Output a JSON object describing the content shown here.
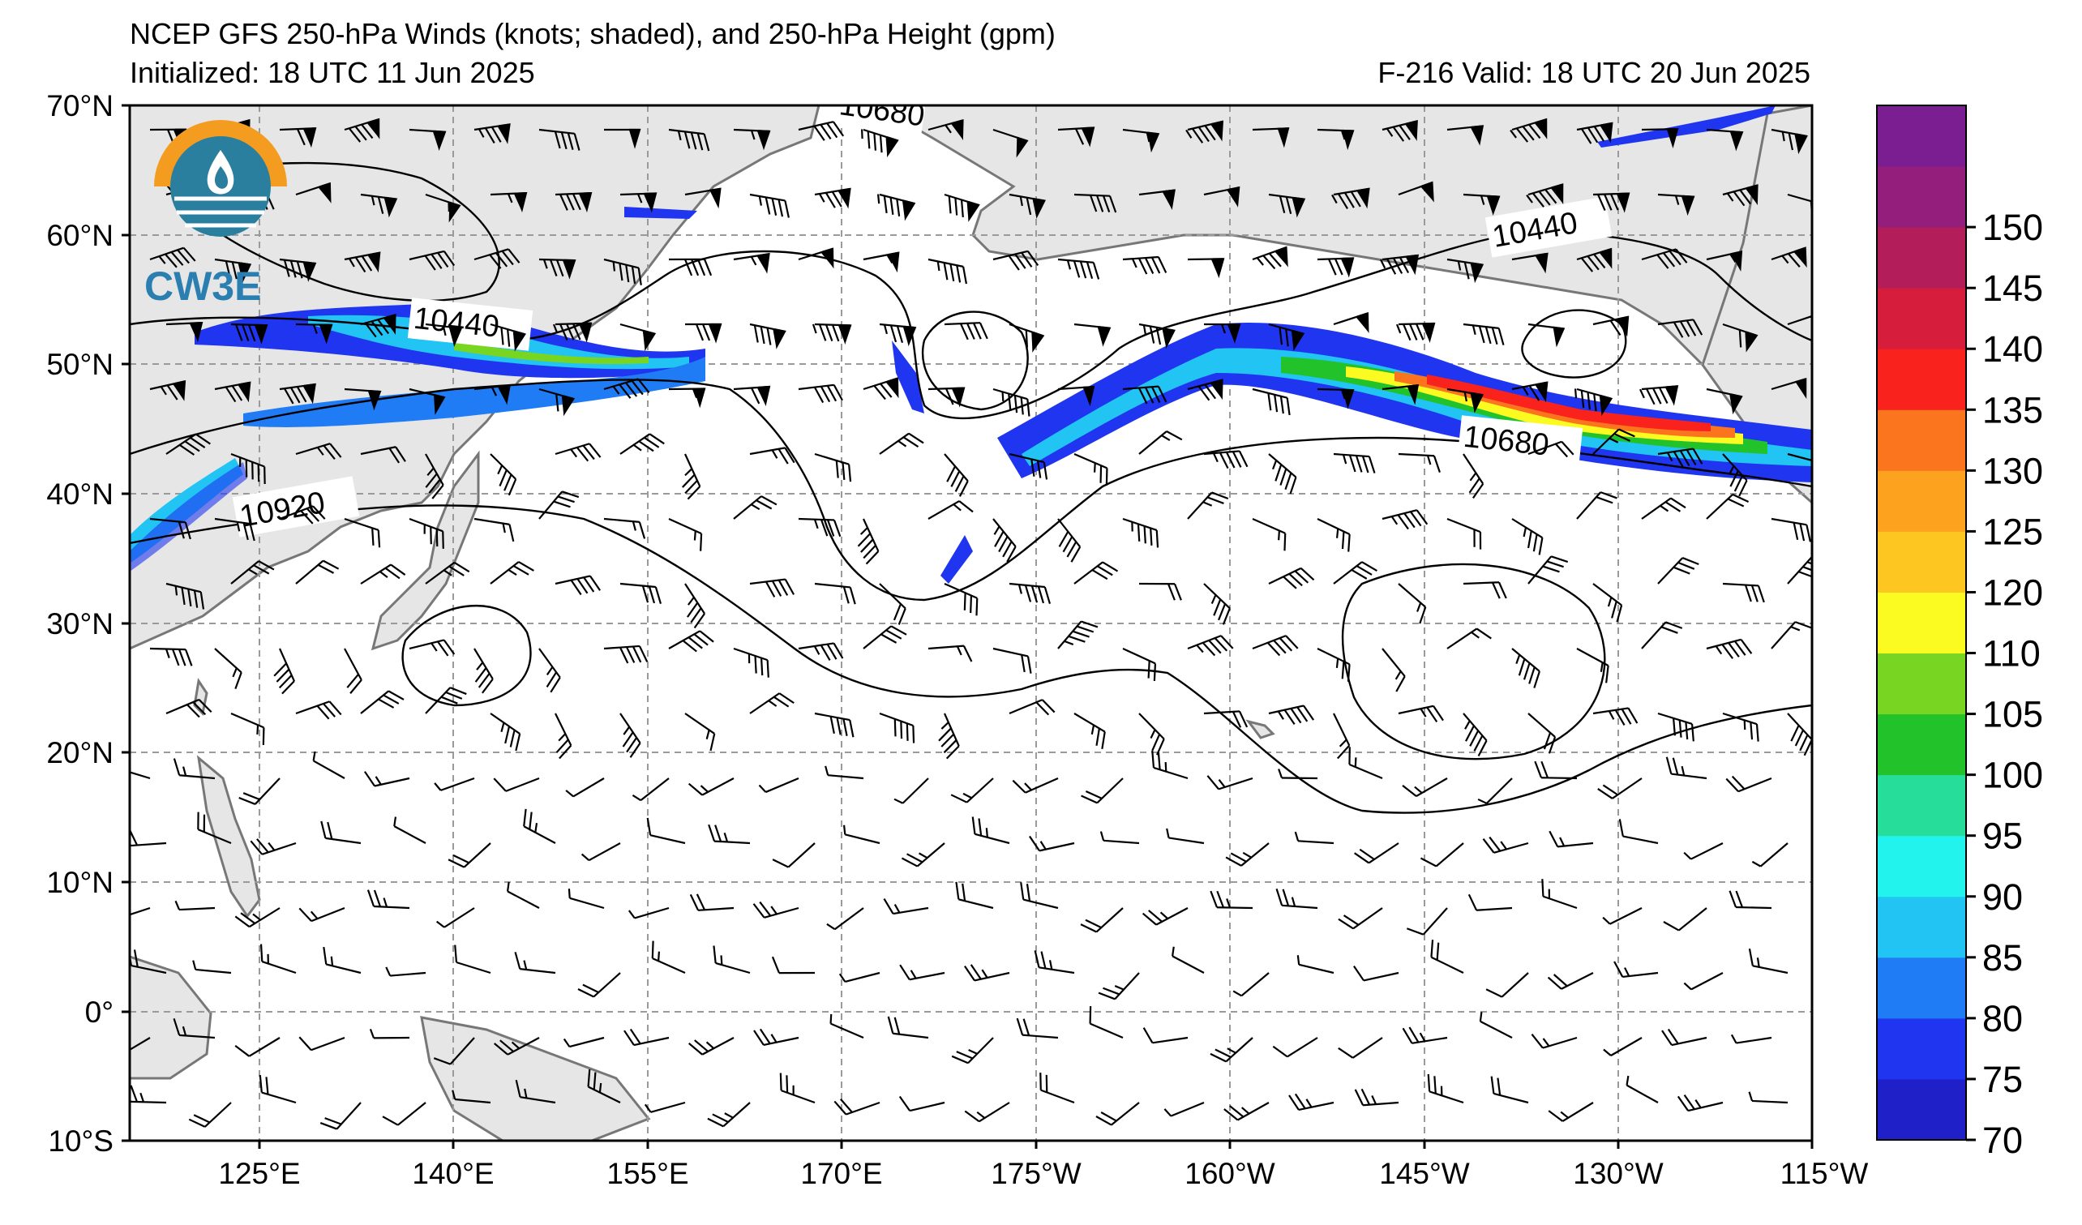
{
  "title": {
    "line1": "NCEP GFS 250-hPa Winds (knots; shaded), and 250-hPa Height (gpm)",
    "line2": "Initialized: 18 UTC 11 Jun 2025",
    "valid": "F-216  Valid: 18 UTC 20 Jun 2025"
  },
  "logo": {
    "text": "CW3E",
    "colors": {
      "ring": "#f39c1f",
      "sea": "#2a7f9e"
    }
  },
  "map": {
    "lat_labels": [
      "70°N",
      "60°N",
      "50°N",
      "40°N",
      "30°N",
      "20°N",
      "10°N",
      "0°",
      "10°S"
    ],
    "lon_labels": [
      "125°E",
      "140°E",
      "155°E",
      "170°E",
      "175°W",
      "160°W",
      "145°W",
      "130°W",
      "115°W"
    ],
    "extent": {
      "lon_min": 115,
      "lon_max": 245,
      "lat_min": -10,
      "lat_max": 70
    },
    "contour_labels": [
      "10680",
      "10440",
      "10920",
      "10440",
      "10680"
    ],
    "colors": {
      "land": "#e6e6e6",
      "coast": "#777777",
      "grid": "#9a9a9a",
      "contour": "#000000"
    }
  },
  "colorbar": {
    "ticks": [
      "70",
      "75",
      "80",
      "85",
      "90",
      "95",
      "100",
      "105",
      "110",
      "120",
      "125",
      "130",
      "135",
      "140",
      "145",
      "150"
    ],
    "colors": [
      "#1f20c8",
      "#2035f0",
      "#1f7cf5",
      "#22c4f4",
      "#22f3ec",
      "#26dd9a",
      "#22c22a",
      "#78d522",
      "#fbfb21",
      "#fdc620",
      "#fca21f",
      "#fb751e",
      "#f9221c",
      "#d61e3c",
      "#b31e5a",
      "#931e7c",
      "#7a1e92"
    ]
  }
}
